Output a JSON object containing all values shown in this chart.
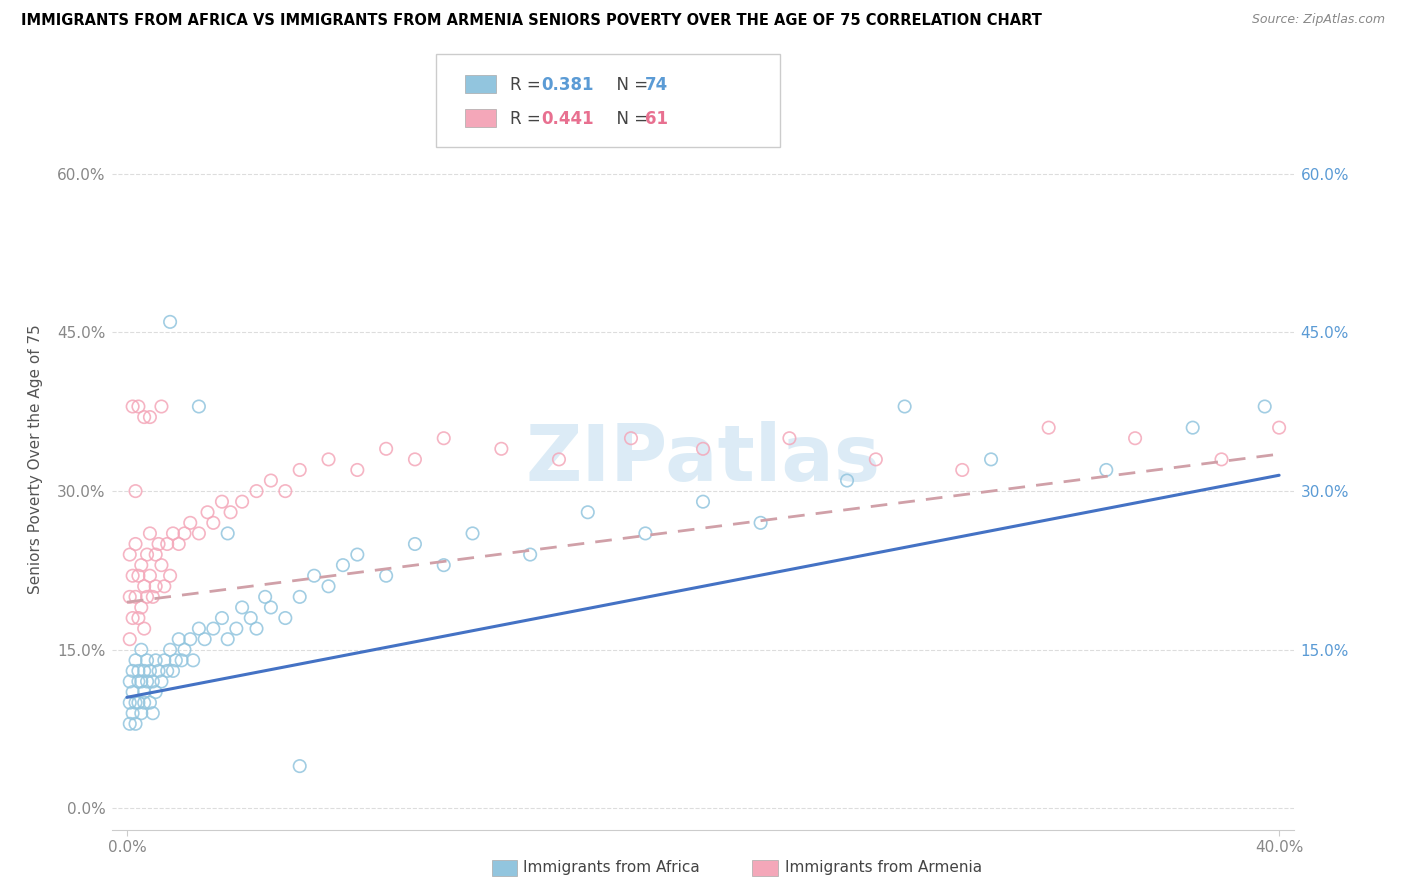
{
  "title": "IMMIGRANTS FROM AFRICA VS IMMIGRANTS FROM ARMENIA SENIORS POVERTY OVER THE AGE OF 75 CORRELATION CHART",
  "source": "Source: ZipAtlas.com",
  "ylabel": "Seniors Poverty Over the Age of 75",
  "xlim": [
    0.0,
    0.4
  ],
  "ylim": [
    -0.02,
    0.68
  ],
  "yticks": [
    0.0,
    0.15,
    0.3,
    0.45,
    0.6
  ],
  "ytick_labels_left": [
    "0.0%",
    "15.0%",
    "30.0%",
    "45.0%",
    "60.0%"
  ],
  "ytick_labels_right": [
    "",
    "15.0%",
    "30.0%",
    "45.0%",
    "60.0%"
  ],
  "legend_r_africa": "0.381",
  "legend_n_africa": "74",
  "legend_r_armenia": "0.441",
  "legend_n_armenia": "61",
  "africa_color": "#92c5de",
  "armenia_color": "#f4a7b9",
  "africa_line_color": "#4472c4",
  "armenia_line_color": "#e06070",
  "watermark_color": "#c5dff0",
  "africa_scatter_x": [
    0.001,
    0.001,
    0.001,
    0.002,
    0.002,
    0.002,
    0.003,
    0.003,
    0.003,
    0.004,
    0.004,
    0.004,
    0.005,
    0.005,
    0.005,
    0.006,
    0.006,
    0.006,
    0.007,
    0.007,
    0.008,
    0.008,
    0.009,
    0.009,
    0.01,
    0.01,
    0.011,
    0.012,
    0.013,
    0.014,
    0.015,
    0.016,
    0.017,
    0.018,
    0.019,
    0.02,
    0.022,
    0.023,
    0.025,
    0.027,
    0.03,
    0.033,
    0.035,
    0.038,
    0.04,
    0.043,
    0.045,
    0.048,
    0.05,
    0.055,
    0.06,
    0.065,
    0.07,
    0.075,
    0.08,
    0.09,
    0.1,
    0.11,
    0.12,
    0.14,
    0.16,
    0.18,
    0.2,
    0.22,
    0.25,
    0.27,
    0.3,
    0.34,
    0.37,
    0.395,
    0.025,
    0.035,
    0.015,
    0.06
  ],
  "africa_scatter_y": [
    0.12,
    0.08,
    0.1,
    0.11,
    0.13,
    0.09,
    0.1,
    0.14,
    0.08,
    0.12,
    0.1,
    0.13,
    0.09,
    0.12,
    0.15,
    0.1,
    0.13,
    0.11,
    0.12,
    0.14,
    0.1,
    0.13,
    0.09,
    0.12,
    0.11,
    0.14,
    0.13,
    0.12,
    0.14,
    0.13,
    0.15,
    0.13,
    0.14,
    0.16,
    0.14,
    0.15,
    0.16,
    0.14,
    0.17,
    0.16,
    0.17,
    0.18,
    0.16,
    0.17,
    0.19,
    0.18,
    0.17,
    0.2,
    0.19,
    0.18,
    0.2,
    0.22,
    0.21,
    0.23,
    0.24,
    0.22,
    0.25,
    0.23,
    0.26,
    0.24,
    0.28,
    0.26,
    0.29,
    0.27,
    0.31,
    0.38,
    0.33,
    0.32,
    0.36,
    0.38,
    0.38,
    0.26,
    0.46,
    0.04
  ],
  "armenia_scatter_x": [
    0.001,
    0.001,
    0.001,
    0.002,
    0.002,
    0.003,
    0.003,
    0.004,
    0.004,
    0.005,
    0.005,
    0.006,
    0.006,
    0.007,
    0.007,
    0.008,
    0.008,
    0.009,
    0.01,
    0.01,
    0.011,
    0.012,
    0.013,
    0.014,
    0.015,
    0.016,
    0.018,
    0.02,
    0.022,
    0.025,
    0.028,
    0.03,
    0.033,
    0.036,
    0.04,
    0.045,
    0.05,
    0.055,
    0.06,
    0.07,
    0.08,
    0.09,
    0.1,
    0.11,
    0.13,
    0.15,
    0.175,
    0.2,
    0.23,
    0.26,
    0.29,
    0.32,
    0.35,
    0.38,
    0.4,
    0.003,
    0.006,
    0.002,
    0.004,
    0.008,
    0.012
  ],
  "armenia_scatter_y": [
    0.2,
    0.16,
    0.24,
    0.18,
    0.22,
    0.2,
    0.25,
    0.18,
    0.22,
    0.19,
    0.23,
    0.21,
    0.17,
    0.24,
    0.2,
    0.22,
    0.26,
    0.2,
    0.24,
    0.21,
    0.25,
    0.23,
    0.21,
    0.25,
    0.22,
    0.26,
    0.25,
    0.26,
    0.27,
    0.26,
    0.28,
    0.27,
    0.29,
    0.28,
    0.29,
    0.3,
    0.31,
    0.3,
    0.32,
    0.33,
    0.32,
    0.34,
    0.33,
    0.35,
    0.34,
    0.33,
    0.35,
    0.34,
    0.35,
    0.33,
    0.32,
    0.36,
    0.35,
    0.33,
    0.36,
    0.3,
    0.37,
    0.38,
    0.38,
    0.37,
    0.38
  ],
  "africa_line_x0": 0.0,
  "africa_line_y0": 0.105,
  "africa_line_x1": 0.4,
  "africa_line_y1": 0.315,
  "armenia_line_x0": 0.0,
  "armenia_line_y0": 0.195,
  "armenia_line_x1": 0.4,
  "armenia_line_y1": 0.335
}
